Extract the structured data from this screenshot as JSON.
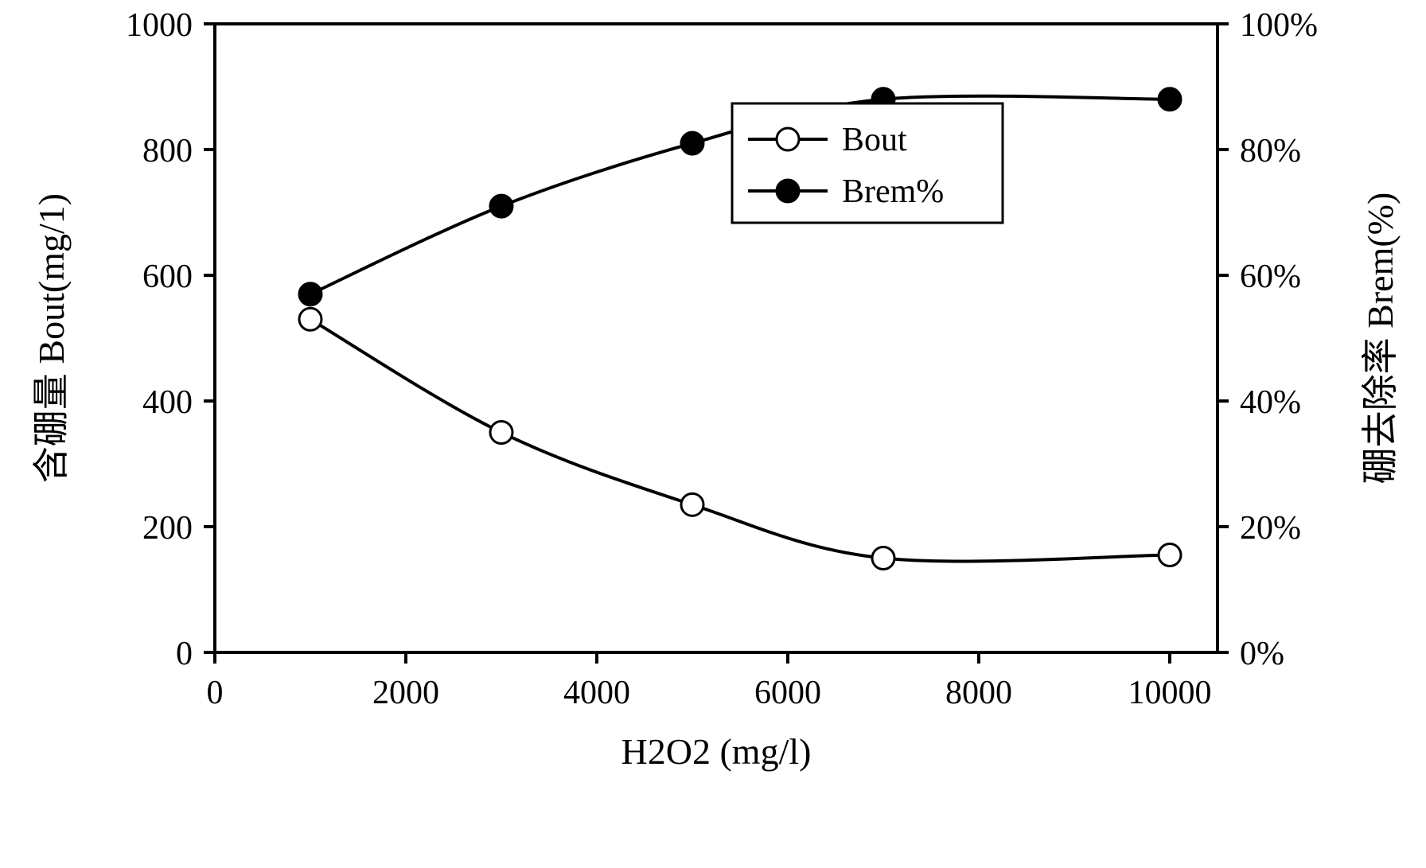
{
  "chart": {
    "type": "dual-axis-line",
    "background_color": "#ffffff",
    "plot_border_color": "#000000",
    "plot_border_width": 4,
    "line_color": "#000000",
    "line_width": 4,
    "marker_size": 14,
    "marker_stroke_width": 3,
    "tick_length": 14,
    "tick_width": 4,
    "tick_label_fontsize": 42,
    "axis_label_fontsize": 46,
    "legend": {
      "border_color": "#000000",
      "border_width": 3,
      "background_color": "#ffffff",
      "fontsize": 42,
      "items": [
        {
          "label": "Bout",
          "marker": "open-circle"
        },
        {
          "label": "Brem%",
          "marker": "filled-circle"
        }
      ]
    },
    "x_axis": {
      "label": "H2O2 (mg/l)",
      "min": 0,
      "max": 10500,
      "ticks": [
        0,
        2000,
        4000,
        6000,
        8000,
        10000
      ],
      "tick_labels": [
        "0",
        "2000",
        "4000",
        "6000",
        "8000",
        "10000"
      ]
    },
    "y_left": {
      "label": "含硼量 Bout(mg/1)",
      "min": 0,
      "max": 1000,
      "ticks": [
        0,
        200,
        400,
        600,
        800,
        1000
      ],
      "tick_labels": [
        "0",
        "200",
        "400",
        "600",
        "800",
        "1000"
      ]
    },
    "y_right": {
      "label": "硼去除率 Brem(%)",
      "min": 0,
      "max": 100,
      "ticks": [
        0,
        20,
        40,
        60,
        80,
        100
      ],
      "tick_labels": [
        "0%",
        "20%",
        "40%",
        "60%",
        "80%",
        "100%"
      ]
    },
    "series": [
      {
        "name": "Bout",
        "axis": "left",
        "marker": "open-circle",
        "color": "#000000",
        "fill": "#ffffff",
        "x": [
          1000,
          3000,
          5000,
          7000,
          10000
        ],
        "y": [
          530,
          350,
          235,
          150,
          155
        ]
      },
      {
        "name": "Brem%",
        "axis": "right",
        "marker": "filled-circle",
        "color": "#000000",
        "fill": "#000000",
        "x": [
          1000,
          3000,
          5000,
          7000,
          10000
        ],
        "y": [
          57,
          71,
          81,
          88,
          88
        ]
      }
    ]
  }
}
